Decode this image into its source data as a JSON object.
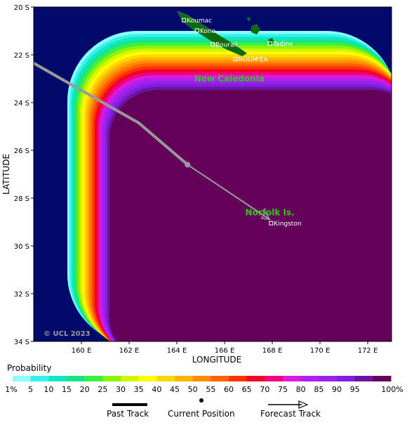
{
  "map": {
    "y_ticks": [
      "20 S",
      "22 S",
      "24 S",
      "26 S",
      "28 S",
      "30 S",
      "32 S",
      "34 S"
    ],
    "x_ticks": [
      "160 E",
      "162 E",
      "164 E",
      "166 E",
      "168 E",
      "170 E",
      "172 E"
    ],
    "x_axis_label": "LONGITUDE",
    "y_axis_label": "LATITUDE",
    "copyright": "© UCL 2023",
    "regions": [
      {
        "name": "New Caledonia",
        "lon": 166.2,
        "lat": 23.0
      },
      {
        "name": "Norfolk Is.",
        "lon": 167.9,
        "lat": 28.6
      }
    ],
    "places": [
      {
        "name": "Koumac",
        "lon": 164.3,
        "lat": 20.55
      },
      {
        "name": "Kone",
        "lon": 164.85,
        "lat": 20.98
      },
      {
        "name": "Bourail",
        "lon": 165.5,
        "lat": 21.56
      },
      {
        "name": "Tadine",
        "lon": 167.9,
        "lat": 21.53
      },
      {
        "name": "NOUM'EA",
        "lon": 166.45,
        "lat": 22.18
      },
      {
        "name": "Kingston",
        "lon": 167.95,
        "lat": 29.05
      }
    ],
    "track_past": [
      [
        158.0,
        22.35
      ],
      [
        162.4,
        24.85
      ],
      [
        164.45,
        26.6
      ]
    ],
    "current_position": [
      164.45,
      26.6
    ],
    "track_forecast": [
      [
        164.45,
        26.6
      ],
      [
        167.9,
        28.9
      ]
    ],
    "colors": {
      "ocean": "#010a6b",
      "land": "#0b6b0b",
      "track": "#9a9a9a",
      "region_label": "#2fc61c"
    }
  },
  "legend": {
    "title": "Probability",
    "labels": [
      "1%",
      "5",
      "10",
      "15",
      "20",
      "25",
      "30",
      "35",
      "40",
      "45",
      "50",
      "55",
      "60",
      "65",
      "70",
      "75",
      "80",
      "85",
      "90",
      "95",
      "100%"
    ],
    "colors": [
      "#8cffff",
      "#35f2ea",
      "#11e6c6",
      "#16e689",
      "#3df03d",
      "#8ef20a",
      "#d2f500",
      "#ffff00",
      "#ffd700",
      "#ffb300",
      "#ff8c00",
      "#ff6200",
      "#ff3300",
      "#f00026",
      "#f0007e",
      "#dc1adc",
      "#b41ef0",
      "#9a22e6",
      "#7f1ee0",
      "#6a14a0",
      "#64005a"
    ]
  },
  "key": {
    "past_track": "Past Track",
    "current_position": "Current Position",
    "forecast_track": "Forecast Track"
  }
}
